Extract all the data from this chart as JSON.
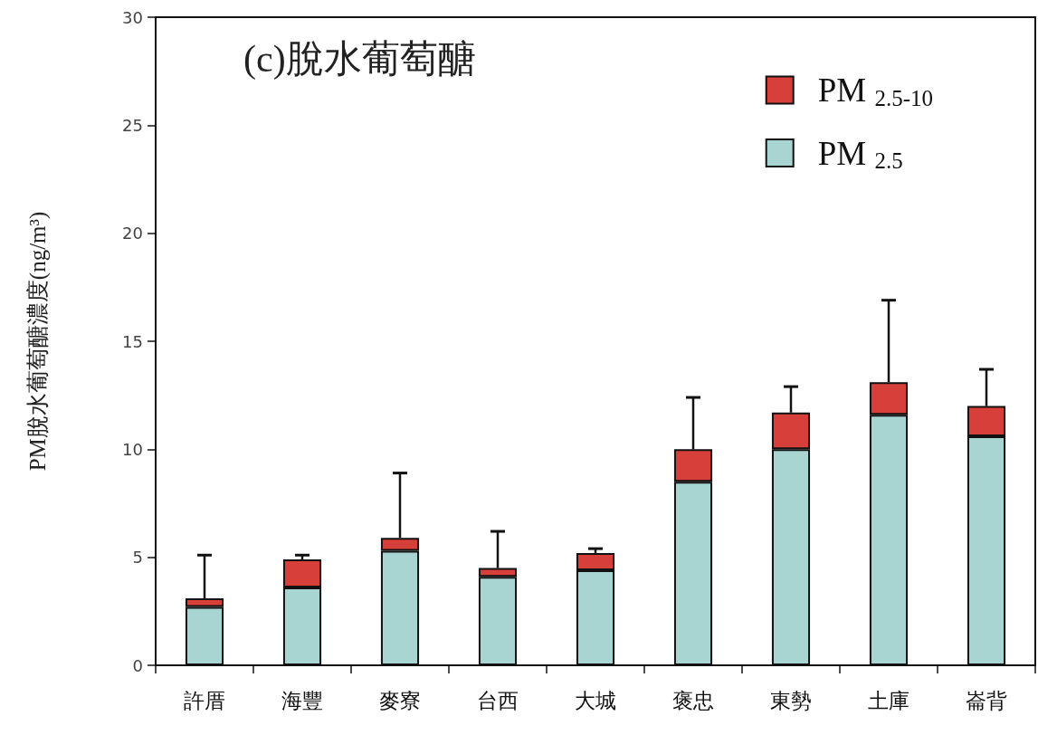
{
  "chart_data": {
    "type": "bar",
    "title": "(c)脫水葡萄醣",
    "ylabel": "PM脫水葡萄醣濃度(ng/m³)",
    "categories": [
      "許厝",
      "海豐",
      "麥寮",
      "台西",
      "大城",
      "褒忠",
      "東勢",
      "土庫",
      "崙背"
    ],
    "series": [
      {
        "name": "PM $_{2.5}$",
        "color": "#a8d4d2",
        "values": [
          2.7,
          3.6,
          5.3,
          4.1,
          4.4,
          8.5,
          10.0,
          11.6,
          10.6
        ]
      },
      {
        "name": "PM $_{2.5-10}$",
        "color": "#d7403a",
        "values": [
          0.4,
          1.3,
          0.6,
          0.4,
          0.8,
          1.5,
          1.7,
          1.5,
          1.4
        ],
        "errors": [
          [
            3.1,
            5.1
          ],
          [
            4.9,
            5.1
          ],
          [
            5.9,
            8.9
          ],
          [
            4.5,
            6.2
          ],
          [
            5.2,
            5.4
          ],
          [
            10.0,
            12.4
          ],
          [
            11.7,
            12.9
          ],
          [
            13.1,
            16.9
          ],
          [
            12.0,
            13.7
          ]
        ]
      }
    ],
    "stacked": true,
    "ylim": [
      0,
      30
    ],
    "yticks": [
      0,
      5,
      10,
      15,
      20,
      25,
      30
    ],
    "grid": false,
    "legend": "top right"
  }
}
